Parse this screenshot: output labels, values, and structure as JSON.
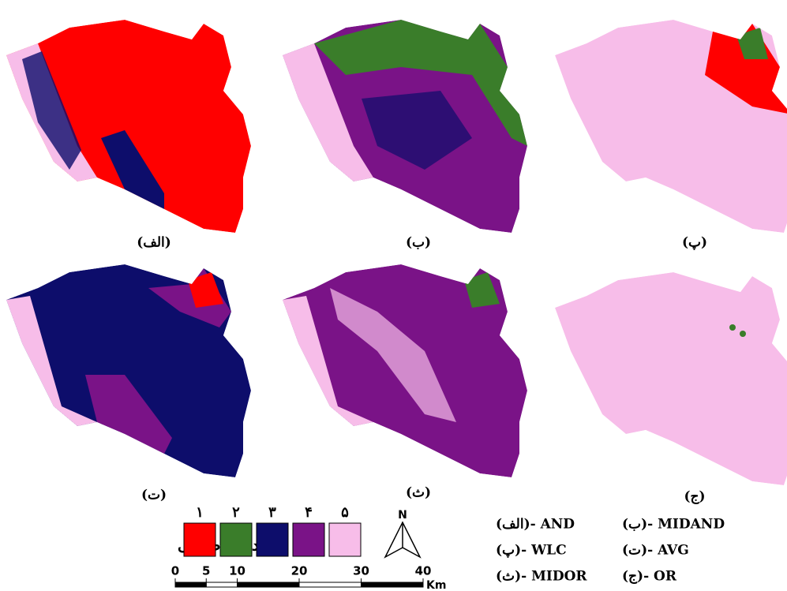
{
  "panels": [
    {
      "label": "(الف)"
    },
    {
      "label": "(ب)"
    },
    {
      "label": "(پ)"
    },
    {
      "label": "(ت)"
    },
    {
      "label": "(ث)"
    },
    {
      "label": "(ج)"
    }
  ],
  "legend": {
    "title": "درجه طبیعی",
    "classes": [
      {
        "label": "۱",
        "color": "#ff0000"
      },
      {
        "label": "۲",
        "color": "#3a7d2a"
      },
      {
        "label": "۳",
        "color": "#0d0d6b"
      },
      {
        "label": "۴",
        "color": "#7a1387"
      },
      {
        "label": "۵",
        "color": "#f7bde9"
      }
    ]
  },
  "north": "N",
  "scale_bar": {
    "ticks": [
      0,
      5,
      10,
      20,
      30,
      40
    ],
    "unit": "Km"
  },
  "methods": [
    "(الف)- AND",
    "(ب)- MIDAND",
    "(پ)- WLC",
    "(ت)- AVG",
    "(ث)- MIDOR",
    "(ج)- OR"
  ]
}
